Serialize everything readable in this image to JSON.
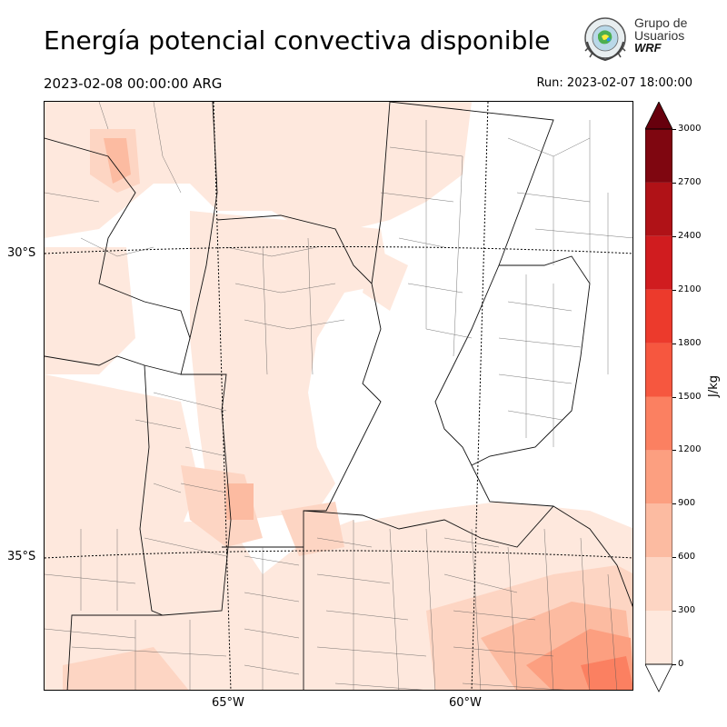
{
  "header": {
    "title": "Energía potencial convectiva disponible",
    "valid_time": "2023-02-08 00:00:00 ARG",
    "run_time": "Run: 2023-02-07 18:00:00"
  },
  "logo": {
    "line1": "Grupo de",
    "line2": "Usuarios",
    "line3": "WRF"
  },
  "map": {
    "lat_labels": [
      "30°S",
      "35°S"
    ],
    "lon_labels": [
      "65°W",
      "60°W"
    ]
  },
  "colorbar": {
    "units": "J/kg",
    "ticks": [
      "0",
      "300",
      "600",
      "900",
      "1200",
      "1500",
      "1800",
      "2100",
      "2400",
      "2700",
      "3000"
    ],
    "colors": [
      "#fee8dd",
      "#fdd5c3",
      "#fcbba1",
      "#fc9f80",
      "#fb8061",
      "#f6573f",
      "#ec3a2c",
      "#d01c1f",
      "#b01217",
      "#7f0610"
    ],
    "under_color": "#ffffff",
    "over_color": "#67000d"
  }
}
